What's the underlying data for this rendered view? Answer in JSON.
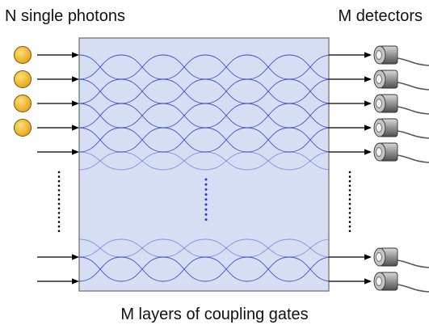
{
  "labels": {
    "photons": "N single photons",
    "detectors": "M detectors",
    "gates": "M layers of coupling gates"
  },
  "counts": {
    "photons": 4,
    "inputs_top": 5,
    "inputs_bottom": 2,
    "detectors_top": 5,
    "detectors_bottom": 2
  },
  "icons": {
    "photon": "photon-icon",
    "detector": "detector-icon",
    "arrow": "arrow-icon"
  },
  "colors": {
    "chip_fill": "#d6def3",
    "chip_border": "#6a6a6a",
    "waveguide": "#2f3fcf",
    "photon_fill": "#f2b418",
    "photon_stroke": "#7a5400",
    "detector_body": "#8a8a8a",
    "arrow": "#000000",
    "ellipsis_dots": "#000000",
    "inner_dots": "#2b35d8"
  }
}
